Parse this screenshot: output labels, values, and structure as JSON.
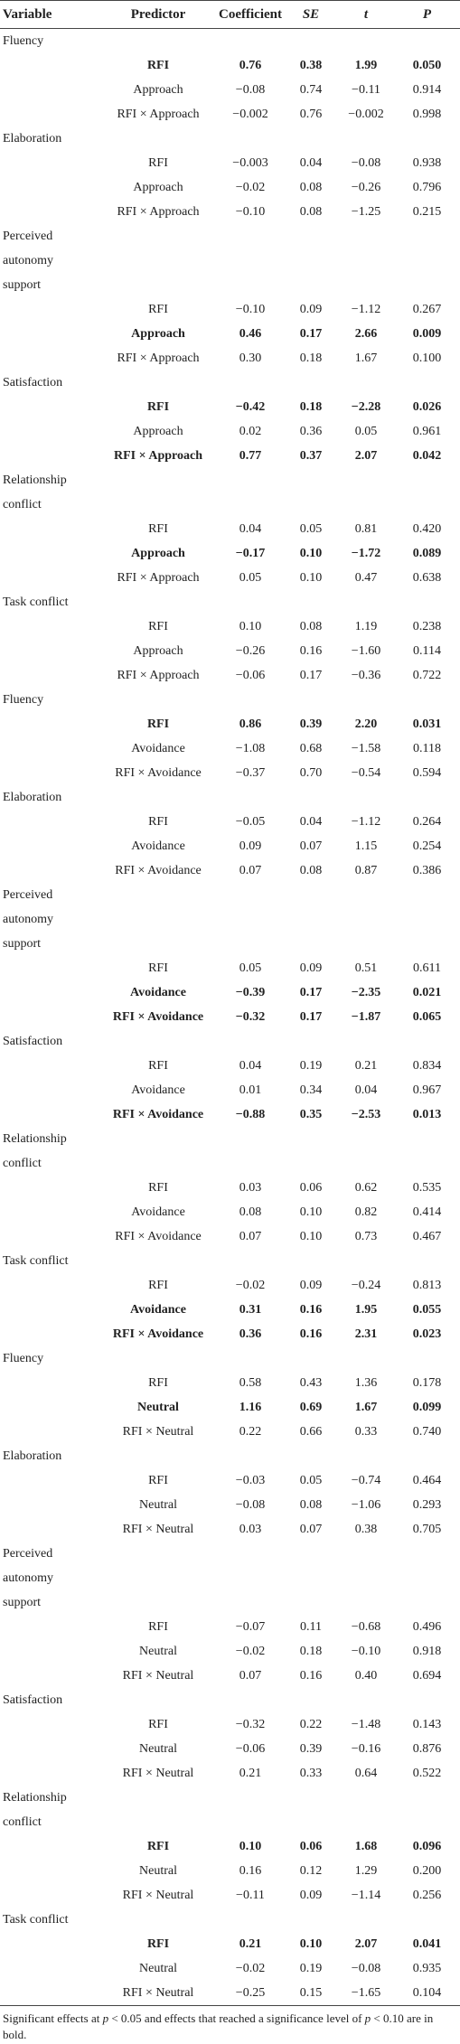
{
  "table": {
    "header": [
      "Variable",
      "Predictor",
      "Coefficient",
      "SE",
      "t",
      "P"
    ],
    "groups": [
      {
        "variable": "Fluency",
        "rows": [
          [
            "RFI",
            "0.76",
            "0.38",
            "1.99",
            "0.050"
          ],
          [
            "Approach",
            "−0.08",
            "0.74",
            "−0.11",
            "0.914"
          ],
          [
            "RFI × Approach",
            "−0.002",
            "0.76",
            "−0.002",
            "0.998"
          ]
        ],
        "bold": [
          true,
          false,
          false
        ]
      },
      {
        "variable": "Elaboration",
        "rows": [
          [
            "RFI",
            "−0.003",
            "0.04",
            "−0.08",
            "0.938"
          ],
          [
            "Approach",
            "−0.02",
            "0.08",
            "−0.26",
            "0.796"
          ],
          [
            "RFI × Approach",
            "−0.10",
            "0.08",
            "−1.25",
            "0.215"
          ]
        ],
        "bold": [
          false,
          false,
          false
        ]
      },
      {
        "variable": "Perceived autonomy support",
        "rows": [
          [
            "RFI",
            "−0.10",
            "0.09",
            "−1.12",
            "0.267"
          ],
          [
            "Approach",
            "0.46",
            "0.17",
            "2.66",
            "0.009"
          ],
          [
            "RFI × Approach",
            "0.30",
            "0.18",
            "1.67",
            "0.100"
          ]
        ],
        "bold": [
          false,
          true,
          false
        ]
      },
      {
        "variable": "Satisfaction",
        "rows": [
          [
            "RFI",
            "−0.42",
            "0.18",
            "−2.28",
            "0.026"
          ],
          [
            "Approach",
            "0.02",
            "0.36",
            "0.05",
            "0.961"
          ],
          [
            "RFI × Approach",
            "0.77",
            "0.37",
            "2.07",
            "0.042"
          ]
        ],
        "bold": [
          true,
          false,
          true
        ]
      },
      {
        "variable": "Relationship conflict",
        "rows": [
          [
            "RFI",
            "0.04",
            "0.05",
            "0.81",
            "0.420"
          ],
          [
            "Approach",
            "−0.17",
            "0.10",
            "−1.72",
            "0.089"
          ],
          [
            "RFI × Approach",
            "0.05",
            "0.10",
            "0.47",
            "0.638"
          ]
        ],
        "bold": [
          false,
          true,
          false
        ]
      },
      {
        "variable": "Task conflict",
        "rows": [
          [
            "RFI",
            "0.10",
            "0.08",
            "1.19",
            "0.238"
          ],
          [
            "Approach",
            "−0.26",
            "0.16",
            "−1.60",
            "0.114"
          ],
          [
            "RFI × Approach",
            "−0.06",
            "0.17",
            "−0.36",
            "0.722"
          ]
        ],
        "bold": [
          false,
          false,
          false
        ]
      },
      {
        "variable": "Fluency",
        "rows": [
          [
            "RFI",
            "0.86",
            "0.39",
            "2.20",
            "0.031"
          ],
          [
            "Avoidance",
            "−1.08",
            "0.68",
            "−1.58",
            "0.118"
          ],
          [
            "RFI × Avoidance",
            "−0.37",
            "0.70",
            "−0.54",
            "0.594"
          ]
        ],
        "bold": [
          true,
          false,
          false
        ]
      },
      {
        "variable": "Elaboration",
        "rows": [
          [
            "RFI",
            "−0.05",
            "0.04",
            "−1.12",
            "0.264"
          ],
          [
            "Avoidance",
            "0.09",
            "0.07",
            "1.15",
            "0.254"
          ],
          [
            "RFI × Avoidance",
            "0.07",
            "0.08",
            "0.87",
            "0.386"
          ]
        ],
        "bold": [
          false,
          false,
          false
        ]
      },
      {
        "variable": "Perceived autonomy support",
        "rows": [
          [
            "RFI",
            "0.05",
            "0.09",
            "0.51",
            "0.611"
          ],
          [
            "Avoidance",
            "−0.39",
            "0.17",
            "−2.35",
            "0.021"
          ],
          [
            "RFI × Avoidance",
            "−0.32",
            "0.17",
            "−1.87",
            "0.065"
          ]
        ],
        "bold": [
          false,
          true,
          true
        ]
      },
      {
        "variable": "Satisfaction",
        "rows": [
          [
            "RFI",
            "0.04",
            "0.19",
            "0.21",
            "0.834"
          ],
          [
            "Avoidance",
            "0.01",
            "0.34",
            "0.04",
            "0.967"
          ],
          [
            "RFI × Avoidance",
            "−0.88",
            "0.35",
            "−2.53",
            "0.013"
          ]
        ],
        "bold": [
          false,
          false,
          true
        ]
      },
      {
        "variable": "Relationship conflict",
        "rows": [
          [
            "RFI",
            "0.03",
            "0.06",
            "0.62",
            "0.535"
          ],
          [
            "Avoidance",
            "0.08",
            "0.10",
            "0.82",
            "0.414"
          ],
          [
            "RFI × Avoidance",
            "0.07",
            "0.10",
            "0.73",
            "0.467"
          ]
        ],
        "bold": [
          false,
          false,
          false
        ]
      },
      {
        "variable": "Task conflict",
        "rows": [
          [
            "RFI",
            "−0.02",
            "0.09",
            "−0.24",
            "0.813"
          ],
          [
            "Avoidance",
            "0.31",
            "0.16",
            "1.95",
            "0.055"
          ],
          [
            "RFI × Avoidance",
            "0.36",
            "0.16",
            "2.31",
            "0.023"
          ]
        ],
        "bold": [
          false,
          true,
          true
        ]
      },
      {
        "variable": "Fluency",
        "rows": [
          [
            "RFI",
            "0.58",
            "0.43",
            "1.36",
            "0.178"
          ],
          [
            "Neutral",
            "1.16",
            "0.69",
            "1.67",
            "0.099"
          ],
          [
            "RFI × Neutral",
            "0.22",
            "0.66",
            "0.33",
            "0.740"
          ]
        ],
        "bold": [
          false,
          true,
          false
        ]
      },
      {
        "variable": "Elaboration",
        "rows": [
          [
            "RFI",
            "−0.03",
            "0.05",
            "−0.74",
            "0.464"
          ],
          [
            "Neutral",
            "−0.08",
            "0.08",
            "−1.06",
            "0.293"
          ],
          [
            "RFI × Neutral",
            "0.03",
            "0.07",
            "0.38",
            "0.705"
          ]
        ],
        "bold": [
          false,
          false,
          false
        ]
      },
      {
        "variable": "Perceived autonomy support",
        "rows": [
          [
            "RFI",
            "−0.07",
            "0.11",
            "−0.68",
            "0.496"
          ],
          [
            "Neutral",
            "−0.02",
            "0.18",
            "−0.10",
            "0.918"
          ],
          [
            "RFI × Neutral",
            "0.07",
            "0.16",
            "0.40",
            "0.694"
          ]
        ],
        "bold": [
          false,
          false,
          false
        ]
      },
      {
        "variable": "Satisfaction",
        "rows": [
          [
            "RFI",
            "−0.32",
            "0.22",
            "−1.48",
            "0.143"
          ],
          [
            "Neutral",
            "−0.06",
            "0.39",
            "−0.16",
            "0.876"
          ],
          [
            "RFI × Neutral",
            "0.21",
            "0.33",
            "0.64",
            "0.522"
          ]
        ],
        "bold": [
          false,
          false,
          false
        ]
      },
      {
        "variable": "Relationship conflict",
        "rows": [
          [
            "RFI",
            "0.10",
            "0.06",
            "1.68",
            "0.096"
          ],
          [
            "Neutral",
            "0.16",
            "0.12",
            "1.29",
            "0.200"
          ],
          [
            "RFI × Neutral",
            "−0.11",
            "0.09",
            "−1.14",
            "0.256"
          ]
        ],
        "bold": [
          true,
          false,
          false
        ]
      },
      {
        "variable": "Task conflict",
        "rows": [
          [
            "RFI",
            "0.21",
            "0.10",
            "2.07",
            "0.041"
          ],
          [
            "Neutral",
            "−0.02",
            "0.19",
            "−0.08",
            "0.935"
          ],
          [
            "RFI × Neutral",
            "−0.25",
            "0.15",
            "−1.65",
            "0.104"
          ]
        ],
        "bold": [
          true,
          false,
          false
        ]
      }
    ],
    "footnote": [
      "Significant effects at ",
      "p",
      " < 0.05 and effects that reached a significance level of ",
      "p",
      " < 0.10 are in bold."
    ]
  }
}
